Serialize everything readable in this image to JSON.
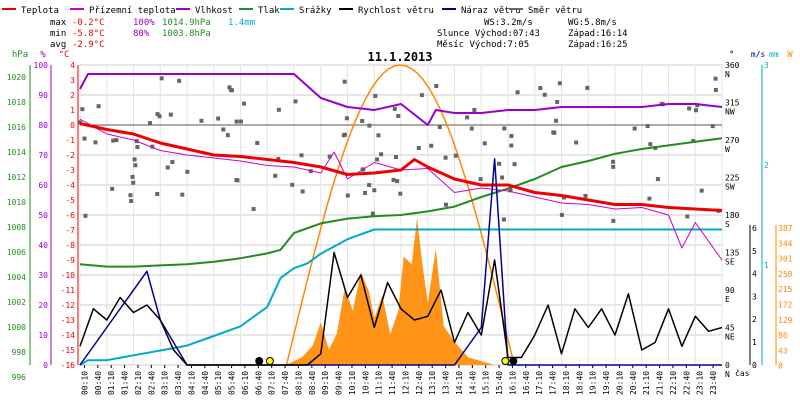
{
  "legend": [
    {
      "label": "Teplota",
      "color": "#ee0000"
    },
    {
      "label": "Přízemní teplota",
      "color": "#cc00cc"
    },
    {
      "label": "Vlhkost",
      "color": "#9900cc"
    },
    {
      "label": "Tlak",
      "color": "#228B22"
    },
    {
      "label": "Srážky",
      "color": "#00aacc"
    },
    {
      "label": "Rychlost větru",
      "color": "#000000"
    },
    {
      "label": "Náraz větru",
      "color": "#000099"
    },
    {
      "label": "Směr větru",
      "color": "#666666"
    }
  ],
  "stats": {
    "max_label": "max",
    "max_temp": "-0.2°C",
    "max_hum": "100%",
    "max_press": "1014.9hPa",
    "max_rain": "1.4mm",
    "min_label": "min",
    "min_temp": "-5.8°C",
    "min_hum": "80%",
    "min_press": "1003.8hPa",
    "avg_label": "avg",
    "avg_temp": "-2.9°C"
  },
  "info": {
    "ws": "WS:3.2m/s",
    "wg": "WG:5.8m/s",
    "slunce": "Slunce Východ:07:43",
    "slunce_set": "Západ:16:14",
    "mesic": "Měsíc  Východ:7:05",
    "mesic_set": "Západ:16:25"
  },
  "title": "11.1.2013",
  "colors": {
    "temp": "#ee0000",
    "ground": "#cc00cc",
    "hum": "#9900cc",
    "press": "#228B22",
    "rain": "#00aacc",
    "wind": "#000000",
    "gust": "#000099",
    "dir": "#666666",
    "solar": "#ff8800",
    "sun_max": "#ff8800"
  },
  "axes": {
    "hpa_unit": "hPa",
    "hpa_ticks": [
      "1020",
      "1018",
      "1016",
      "1014",
      "1012",
      "1010",
      "1008",
      "1006",
      "1004",
      "1002",
      "1000",
      "998",
      "996"
    ],
    "pct_unit": "%",
    "pct_ticks": [
      "100",
      "90",
      "80",
      "70",
      "60",
      "50",
      "40",
      "30",
      "20",
      "10",
      "0"
    ],
    "c_unit": "°C",
    "c_ticks": [
      "4",
      "3",
      "2",
      "1",
      "0",
      "-1",
      "-2",
      "-3",
      "-4",
      "-5",
      "-6",
      "-7",
      "-8",
      "-9",
      "-10",
      "-11",
      "-12",
      "-13",
      "-14",
      "-15",
      "-16"
    ],
    "deg_unit": "°",
    "dir_ticks": [
      "360",
      "315",
      "270",
      "225",
      "180",
      "135",
      "90",
      "45",
      "0"
    ],
    "dir_names": [
      "N",
      "NW",
      "W",
      "SW",
      "S",
      "SE",
      "E",
      "NE",
      "N"
    ],
    "ms_unit": "m/s",
    "ms_ticks": [
      "3",
      "2",
      "1"
    ],
    "ms_lower_ticks": [
      "6",
      "5",
      "4",
      "3",
      "2",
      "1",
      "0"
    ],
    "mm_unit": "mm",
    "w_unit": "W",
    "w_ticks": [
      "387",
      "344",
      "301",
      "258",
      "215",
      "172",
      "129",
      "86",
      "43",
      "0"
    ],
    "time_ticks": [
      "00:10",
      "00:40",
      "01:10",
      "01:40",
      "02:10",
      "02:40",
      "03:10",
      "03:40",
      "04:10",
      "04:40",
      "05:10",
      "05:40",
      "06:10",
      "06:40",
      "07:10",
      "07:40",
      "08:10",
      "08:40",
      "09:10",
      "09:40",
      "10:10",
      "10:40",
      "11:10",
      "11:40",
      "12:10",
      "12:40",
      "13:10",
      "13:40",
      "14:10",
      "14:40",
      "15:10",
      "15:40",
      "16:10",
      "16:40",
      "17:10",
      "17:40",
      "18:10",
      "18:40",
      "19:10",
      "19:40",
      "20:10",
      "20:40",
      "21:10",
      "21:40",
      "22:10",
      "22:40",
      "23:10",
      "23:40"
    ],
    "time_unit": "čas"
  },
  "chart_data": {
    "type": "line",
    "title": "11.1.2013",
    "x_unit": "hours",
    "series": [
      {
        "name": "Teplota",
        "unit": "°C",
        "x": [
          0,
          1,
          2,
          3,
          4,
          5,
          6,
          7,
          8,
          9,
          10,
          11,
          12,
          12.5,
          13,
          14,
          15,
          16,
          17,
          18,
          19,
          20,
          21,
          22,
          23,
          24
        ],
        "y": [
          0.1,
          -0.3,
          -0.6,
          -1.2,
          -1.6,
          -2.0,
          -2.1,
          -2.3,
          -2.5,
          -2.8,
          -3.3,
          -3.2,
          -3.0,
          -2.3,
          -2.8,
          -3.6,
          -4.0,
          -4.0,
          -4.5,
          -4.7,
          -5.0,
          -5.3,
          -5.3,
          -5.5,
          -5.6,
          -5.7
        ]
      },
      {
        "name": "Přízemní teplota",
        "unit": "°C",
        "x": [
          0,
          1,
          2,
          3,
          4,
          5,
          6,
          7,
          8,
          9,
          9.5,
          10,
          11,
          12,
          13,
          14,
          15,
          16,
          17,
          18,
          19,
          20,
          21,
          22,
          22.5,
          23,
          24
        ],
        "y": [
          0.4,
          -0.6,
          -1.0,
          -1.7,
          -2.0,
          -2.2,
          -2.4,
          -2.7,
          -2.8,
          -3.2,
          -1.8,
          -3.6,
          -2.5,
          -3.0,
          -2.9,
          -4.5,
          -4.2,
          -4.4,
          -4.8,
          -5.2,
          -5.3,
          -5.6,
          -5.5,
          -6.0,
          -8.2,
          -6.5,
          -9.0
        ]
      },
      {
        "name": "Vlhkost",
        "unit": "%",
        "x": [
          0,
          0.3,
          1,
          2,
          3,
          4,
          5,
          6,
          7,
          8,
          9,
          10,
          11,
          12,
          13,
          13.3,
          14,
          15,
          16,
          17,
          18,
          19,
          20,
          21,
          22,
          23,
          24
        ],
        "y": [
          92,
          97,
          97,
          97,
          97,
          97,
          97,
          97,
          97,
          97,
          89,
          86,
          85,
          87,
          80,
          85,
          84,
          84,
          85,
          85,
          86,
          86,
          86,
          86,
          87,
          87,
          86
        ]
      },
      {
        "name": "Tlak",
        "unit": "hPa",
        "x": [
          0,
          1,
          2,
          3,
          4,
          5,
          6,
          7,
          7.5,
          8,
          9,
          10,
          11,
          12,
          13,
          14,
          15,
          16,
          17,
          18,
          19,
          20,
          21,
          22,
          23,
          24
        ],
        "y": [
          1004.4,
          1004.2,
          1004.2,
          1004.3,
          1004.4,
          1004.6,
          1004.9,
          1005.3,
          1005.6,
          1007.0,
          1007.8,
          1008.2,
          1008.4,
          1008.5,
          1008.8,
          1009.2,
          1010.0,
          1010.7,
          1011.5,
          1012.5,
          1013.0,
          1013.6,
          1014.0,
          1014.3,
          1014.6,
          1014.9
        ]
      },
      {
        "name": "Srážky",
        "unit": "mm",
        "x": [
          0,
          0.3,
          1,
          2,
          3,
          4,
          5,
          6,
          7,
          7.5,
          8,
          8.5,
          9,
          10,
          11,
          12,
          13,
          14,
          15,
          16,
          17,
          18,
          19,
          20,
          21,
          22,
          23,
          24
        ],
        "y": [
          0,
          0.05,
          0.05,
          0.1,
          0.15,
          0.2,
          0.3,
          0.4,
          0.6,
          0.9,
          1.0,
          1.05,
          1.15,
          1.3,
          1.4,
          1.4,
          1.4,
          1.4,
          1.4,
          1.4,
          1.4,
          1.4,
          1.4,
          1.4,
          1.4,
          1.4,
          1.4,
          1.4
        ]
      },
      {
        "name": "Rychlost větru",
        "unit": "m/s",
        "x": [
          0,
          0.5,
          1,
          1.5,
          2,
          2.5,
          3,
          3.5,
          4,
          4.5,
          5,
          5.5,
          6,
          6.5,
          7,
          7.5,
          8,
          8.5,
          9,
          9.5,
          10,
          10.5,
          11,
          11.5,
          12,
          12.5,
          13,
          13.5,
          14,
          14.5,
          15,
          15.5,
          16,
          16.5,
          17,
          17.5,
          18,
          18.5,
          19,
          19.5,
          20,
          20.5,
          21,
          21.5,
          22,
          22.5,
          23,
          23.5,
          24
        ],
        "y": [
          0.5,
          1.5,
          1.2,
          1.8,
          1.4,
          1.6,
          1.2,
          0.4,
          0,
          0,
          0,
          0,
          0,
          0,
          0,
          0,
          0,
          0,
          0.3,
          3.0,
          1.8,
          2.4,
          1.0,
          2.2,
          1.5,
          1.2,
          1.3,
          2.0,
          0.6,
          1.4,
          0.8,
          2.8,
          0.2,
          0.2,
          0.8,
          1.6,
          0.3,
          1.5,
          1.0,
          1.5,
          0.8,
          1.9,
          0.4,
          0.6,
          1.5,
          0.5,
          1.3,
          0.9,
          1.0
        ]
      },
      {
        "name": "Náraz větru",
        "unit": "m/s",
        "x": [
          0,
          2.5,
          3,
          4,
          9,
          10,
          12,
          14,
          15,
          15.5,
          16,
          17,
          24
        ],
        "y": [
          0,
          2.5,
          1.2,
          0,
          0,
          0,
          0,
          0,
          1.0,
          5.5,
          0,
          0,
          0
        ]
      }
    ]
  }
}
